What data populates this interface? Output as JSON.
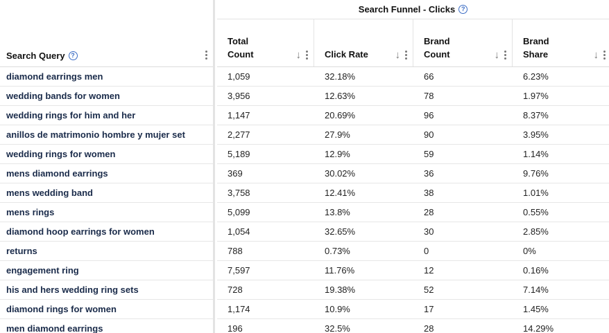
{
  "group_header": {
    "title": "Search Funnel - Clicks",
    "help_icon": "help-circle-icon"
  },
  "columns": {
    "query": "Search Query",
    "total_count": "Total\nCount",
    "click_rate": "Click Rate",
    "brand_count": "Brand\nCount",
    "brand_share": "Brand\nShare",
    "sort_icon": "arrow-down-icon",
    "menu_icon": "kebab-menu-icon"
  },
  "rows": [
    {
      "query": "diamond earrings men",
      "total": "1,059",
      "rate": "32.18%",
      "brand": "66",
      "share": "6.23%"
    },
    {
      "query": "wedding bands for women",
      "total": "3,956",
      "rate": "12.63%",
      "brand": "78",
      "share": "1.97%"
    },
    {
      "query": "wedding rings for him and her",
      "total": "1,147",
      "rate": "20.69%",
      "brand": "96",
      "share": "8.37%"
    },
    {
      "query": "anillos de matrimonio hombre y mujer set",
      "total": "2,277",
      "rate": "27.9%",
      "brand": "90",
      "share": "3.95%"
    },
    {
      "query": "wedding rings for women",
      "total": "5,189",
      "rate": "12.9%",
      "brand": "59",
      "share": "1.14%"
    },
    {
      "query": "mens diamond earrings",
      "total": "369",
      "rate": "30.02%",
      "brand": "36",
      "share": "9.76%"
    },
    {
      "query": "mens wedding band",
      "total": "3,758",
      "rate": "12.41%",
      "brand": "38",
      "share": "1.01%"
    },
    {
      "query": "mens rings",
      "total": "5,099",
      "rate": "13.8%",
      "brand": "28",
      "share": "0.55%"
    },
    {
      "query": "diamond hoop earrings for women",
      "total": "1,054",
      "rate": "32.65%",
      "brand": "30",
      "share": "2.85%"
    },
    {
      "query": "returns",
      "total": "788",
      "rate": "0.73%",
      "brand": "0",
      "share": "0%"
    },
    {
      "query": "engagement ring",
      "total": "7,597",
      "rate": "11.76%",
      "brand": "12",
      "share": "0.16%"
    },
    {
      "query": "his and hers wedding ring sets",
      "total": "728",
      "rate": "19.38%",
      "brand": "52",
      "share": "7.14%"
    },
    {
      "query": "diamond rings for women",
      "total": "1,174",
      "rate": "10.9%",
      "brand": "17",
      "share": "1.45%"
    },
    {
      "query": "men diamond earrings",
      "total": "196",
      "rate": "32.5%",
      "brand": "28",
      "share": "14.29%"
    }
  ]
}
